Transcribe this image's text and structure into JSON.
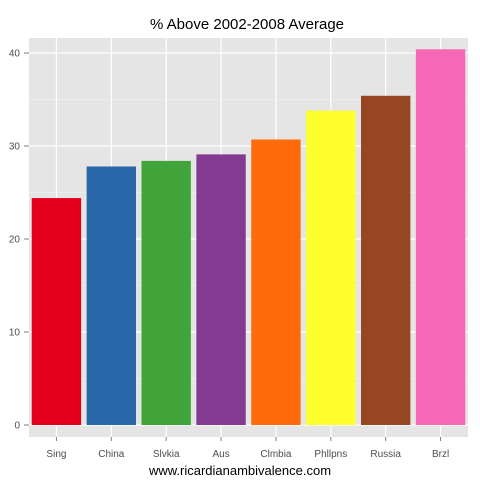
{
  "chart_data": {
    "type": "bar",
    "title": "% Above 2002-2008 Average",
    "categories": [
      "Sing",
      "China",
      "Slvkia",
      "Aus",
      "Clmbia",
      "Phllpns",
      "Russia",
      "Brzl"
    ],
    "values": [
      24.4,
      27.8,
      28.4,
      29.1,
      30.7,
      33.8,
      35.4,
      40.4
    ],
    "colors": [
      "#e3001b",
      "#2b68aa",
      "#40a43a",
      "#853a91",
      "#ff6a0a",
      "#ffff2e",
      "#964620",
      "#f468b5"
    ],
    "xlabel": "",
    "ylabel": "",
    "ylim": [
      0,
      42
    ],
    "yticks": [
      0,
      10,
      20,
      30,
      40
    ],
    "grid": true,
    "panel_background": "#e5e5e5",
    "grid_color": "#ffffff"
  },
  "footer": {
    "credit": "www.ricardianambivalence.com"
  }
}
